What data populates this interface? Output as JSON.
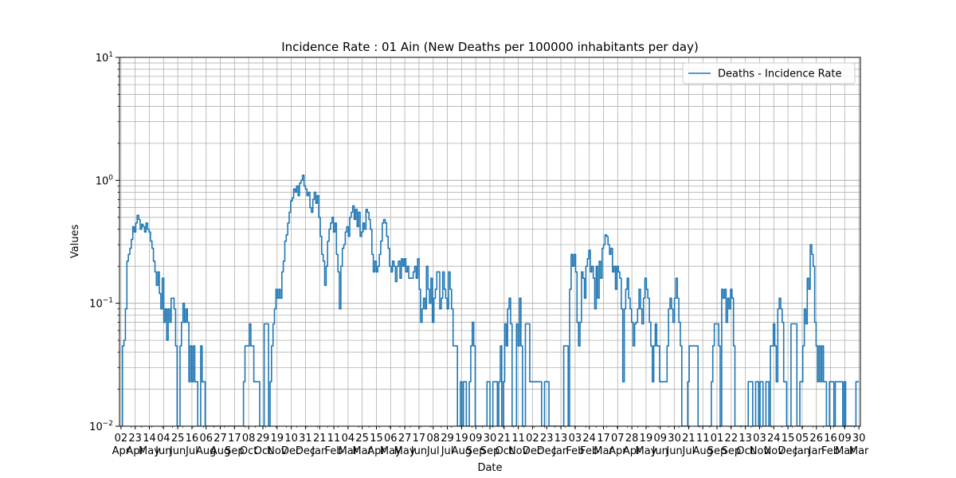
{
  "chart_data": {
    "type": "line",
    "title": "Incidence Rate : 01 Ain (New Deaths per 100000 inhabitants per day)",
    "xlabel": "Date",
    "ylabel": "Values",
    "yscale": "log",
    "ylim": [
      0.01,
      10
    ],
    "y_ticks": [
      {
        "value": 0.01,
        "base": "10",
        "exp": "−2"
      },
      {
        "value": 0.1,
        "base": "10",
        "exp": "−1"
      },
      {
        "value": 1,
        "base": "10",
        "exp": "0"
      },
      {
        "value": 10,
        "base": "10",
        "exp": "1"
      }
    ],
    "grid": true,
    "legend_position": "top-right",
    "x_tick_labels": [
      {
        "day": "02",
        "month": "Apr"
      },
      {
        "day": "23",
        "month": "Apr"
      },
      {
        "day": "14",
        "month": "May"
      },
      {
        "day": "04",
        "month": "Jun"
      },
      {
        "day": "25",
        "month": "Jun"
      },
      {
        "day": "16",
        "month": "Jul"
      },
      {
        "day": "06",
        "month": "Aug"
      },
      {
        "day": "27",
        "month": "Aug"
      },
      {
        "day": "17",
        "month": "Sep"
      },
      {
        "day": "08",
        "month": "Oct"
      },
      {
        "day": "29",
        "month": "Oct"
      },
      {
        "day": "19",
        "month": "Nov"
      },
      {
        "day": "10",
        "month": "Dec"
      },
      {
        "day": "31",
        "month": "Dec"
      },
      {
        "day": "21",
        "month": "Jan"
      },
      {
        "day": "11",
        "month": "Feb"
      },
      {
        "day": "04",
        "month": "Mar"
      },
      {
        "day": "25",
        "month": "Mar"
      },
      {
        "day": "15",
        "month": "Apr"
      },
      {
        "day": "06",
        "month": "May"
      },
      {
        "day": "27",
        "month": "May"
      },
      {
        "day": "17",
        "month": "Jun"
      },
      {
        "day": "08",
        "month": "Jul"
      },
      {
        "day": "29",
        "month": "Jul"
      },
      {
        "day": "19",
        "month": "Aug"
      },
      {
        "day": "09",
        "month": "Sep"
      },
      {
        "day": "30",
        "month": "Sep"
      },
      {
        "day": "21",
        "month": "Oct"
      },
      {
        "day": "11",
        "month": "Nov"
      },
      {
        "day": "02",
        "month": "Dec"
      },
      {
        "day": "23",
        "month": "Dec"
      },
      {
        "day": "13",
        "month": "Jan"
      },
      {
        "day": "03",
        "month": "Feb"
      },
      {
        "day": "24",
        "month": "Feb"
      },
      {
        "day": "17",
        "month": "Mar"
      },
      {
        "day": "07",
        "month": "Apr"
      },
      {
        "day": "28",
        "month": "Apr"
      },
      {
        "day": "19",
        "month": "May"
      },
      {
        "day": "09",
        "month": "Jun"
      },
      {
        "day": "30",
        "month": "Jun"
      },
      {
        "day": "21",
        "month": "Jul"
      },
      {
        "day": "11",
        "month": "Aug"
      },
      {
        "day": "01",
        "month": "Sep"
      },
      {
        "day": "22",
        "month": "Sep"
      },
      {
        "day": "13",
        "month": "Oct"
      },
      {
        "day": "03",
        "month": "Nov"
      },
      {
        "day": "24",
        "month": "Nov"
      },
      {
        "day": "15",
        "month": "Dec"
      },
      {
        "day": "05",
        "month": "Jan"
      },
      {
        "day": "26",
        "month": "Jan"
      },
      {
        "day": "16",
        "month": "Feb"
      },
      {
        "day": "09",
        "month": "Mar"
      },
      {
        "day": "30",
        "month": "Mar"
      }
    ],
    "series": [
      {
        "name": "Deaths - Incidence Rate",
        "color": "#1f77b4",
        "x_start": 0,
        "x_step": 1,
        "values": [
          0.01,
          0.045,
          0.05,
          0.09,
          0.22,
          0.25,
          0.28,
          0.33,
          0.42,
          0.38,
          0.45,
          0.52,
          0.48,
          0.4,
          0.44,
          0.42,
          0.38,
          0.45,
          0.4,
          0.38,
          0.32,
          0.28,
          0.22,
          0.18,
          0.14,
          0.18,
          0.12,
          0.09,
          0.16,
          0.07,
          0.09,
          0.05,
          0.09,
          0.07,
          0.11,
          0.11,
          0.09,
          0.045,
          0.01,
          0.01,
          0.045,
          0.07,
          0.1,
          0.07,
          0.09,
          0.07,
          0.023,
          0.045,
          0.023,
          0.045,
          0.023,
          0.023,
          0.01,
          0.01,
          0.045,
          0.023,
          0.023,
          0.01,
          0.01,
          0.01,
          0.01,
          0.01,
          0.01,
          0.01,
          0.01,
          0.01,
          0.01,
          0.01,
          0.01,
          0.01,
          0.01,
          0.01,
          0.01,
          0.01,
          0.01,
          0.01,
          0.01,
          0.01,
          0.01,
          0.01,
          0.01,
          0.01,
          0.01,
          0.023,
          0.045,
          0.045,
          0.045,
          0.068,
          0.045,
          0.045,
          0.023,
          0.023,
          0.023,
          0.023,
          0.01,
          0.01,
          0.01,
          0.068,
          0.068,
          0.068,
          0.01,
          0.023,
          0.045,
          0.068,
          0.09,
          0.13,
          0.11,
          0.13,
          0.11,
          0.18,
          0.22,
          0.32,
          0.36,
          0.45,
          0.55,
          0.68,
          0.72,
          0.85,
          0.8,
          0.9,
          0.75,
          0.95,
          1.0,
          1.1,
          0.9,
          0.85,
          0.75,
          0.8,
          0.6,
          0.55,
          0.7,
          0.8,
          0.65,
          0.75,
          0.5,
          0.35,
          0.25,
          0.22,
          0.14,
          0.2,
          0.32,
          0.4,
          0.45,
          0.5,
          0.38,
          0.45,
          0.25,
          0.18,
          0.09,
          0.2,
          0.28,
          0.3,
          0.38,
          0.42,
          0.35,
          0.5,
          0.55,
          0.62,
          0.48,
          0.58,
          0.42,
          0.55,
          0.35,
          0.38,
          0.45,
          0.4,
          0.58,
          0.55,
          0.48,
          0.4,
          0.25,
          0.18,
          0.22,
          0.18,
          0.2,
          0.25,
          0.32,
          0.45,
          0.48,
          0.45,
          0.35,
          0.28,
          0.2,
          0.18,
          0.22,
          0.2,
          0.15,
          0.2,
          0.22,
          0.16,
          0.23,
          0.2,
          0.23,
          0.18,
          0.2,
          0.16,
          0.16,
          0.16,
          0.18,
          0.2,
          0.16,
          0.23,
          0.13,
          0.07,
          0.09,
          0.11,
          0.09,
          0.2,
          0.13,
          0.1,
          0.16,
          0.07,
          0.11,
          0.13,
          0.18,
          0.18,
          0.09,
          0.11,
          0.18,
          0.13,
          0.11,
          0.09,
          0.18,
          0.13,
          0.09,
          0.045,
          0.045,
          0.045,
          0.01,
          0.01,
          0.023,
          0.01,
          0.023,
          0.023,
          0.01,
          0.01,
          0.023,
          0.045,
          0.07,
          0.045,
          0.01,
          0.01,
          0.01,
          0.01,
          0.01,
          0.01,
          0.01,
          0.01,
          0.023,
          0.023,
          0.01,
          0.01,
          0.023,
          0.023,
          0.023,
          0.01,
          0.023,
          0.045,
          0.01,
          0.023,
          0.068,
          0.045,
          0.09,
          0.11,
          0.068,
          0.01,
          0.01,
          0.01,
          0.068,
          0.045,
          0.11,
          0.045,
          0.01,
          0.01,
          0.068,
          0.068,
          0.068,
          0.023,
          0.023,
          0.023,
          0.023,
          0.023,
          0.023,
          0.023,
          0.023,
          0.01,
          0.01,
          0.023,
          0.023,
          0.023,
          0.01,
          0.01,
          0.01,
          0.01,
          0.01,
          0.01,
          0.01,
          0.01,
          0.01,
          0.01,
          0.045,
          0.045,
          0.045,
          0.01,
          0.13,
          0.25,
          0.2,
          0.25,
          0.18,
          0.07,
          0.045,
          0.07,
          0.18,
          0.16,
          0.11,
          0.2,
          0.23,
          0.27,
          0.18,
          0.2,
          0.16,
          0.09,
          0.2,
          0.11,
          0.22,
          0.16,
          0.28,
          0.3,
          0.36,
          0.35,
          0.3,
          0.25,
          0.28,
          0.18,
          0.2,
          0.13,
          0.2,
          0.18,
          0.16,
          0.09,
          0.023,
          0.09,
          0.13,
          0.16,
          0.11,
          0.09,
          0.07,
          0.045,
          0.068,
          0.07,
          0.09,
          0.13,
          0.09,
          0.068,
          0.11,
          0.16,
          0.13,
          0.11,
          0.07,
          0.045,
          0.023,
          0.045,
          0.068,
          0.045,
          0.045,
          0.023,
          0.023,
          0.023,
          0.023,
          0.023,
          0.045,
          0.09,
          0.11,
          0.09,
          0.07,
          0.11,
          0.16,
          0.11,
          0.07,
          0.045,
          0.01,
          0.01,
          0.01,
          0.01,
          0.023,
          0.045,
          0.045,
          0.045,
          0.045,
          0.045,
          0.045,
          0.01,
          0.01,
          0.01,
          0.01,
          0.01,
          0.01,
          0.01,
          0.01,
          0.01,
          0.023,
          0.045,
          0.068,
          0.068,
          0.068,
          0.045,
          0.01,
          0.13,
          0.11,
          0.13,
          0.07,
          0.11,
          0.09,
          0.13,
          0.11,
          0.045,
          0.01,
          0.01,
          0.01,
          0.01,
          0.01,
          0.01,
          0.01,
          0.01,
          0.01,
          0.023,
          0.023,
          0.023,
          0.01,
          0.01,
          0.023,
          0.023,
          0.01,
          0.023,
          0.023,
          0.01,
          0.01,
          0.023,
          0.023,
          0.01,
          0.045,
          0.045,
          0.068,
          0.045,
          0.023,
          0.09,
          0.11,
          0.09,
          0.07,
          0.023,
          0.023,
          0.01,
          0.01,
          0.01,
          0.068,
          0.068,
          0.068,
          0.068,
          0.01,
          0.01,
          0.023,
          0.023,
          0.045,
          0.09,
          0.068,
          0.16,
          0.13,
          0.3,
          0.25,
          0.2,
          0.07,
          0.045,
          0.023,
          0.045,
          0.023,
          0.045,
          0.023,
          0.023,
          0.01,
          0.01,
          0.023,
          0.023,
          0.023,
          0.01,
          0.023,
          0.023,
          0.023,
          0.023,
          0.023,
          0.01,
          0.023,
          0.01,
          0.01,
          0.01,
          0.01,
          0.01,
          0.01,
          0.01,
          0.023,
          0.023,
          0.023
        ]
      }
    ]
  }
}
